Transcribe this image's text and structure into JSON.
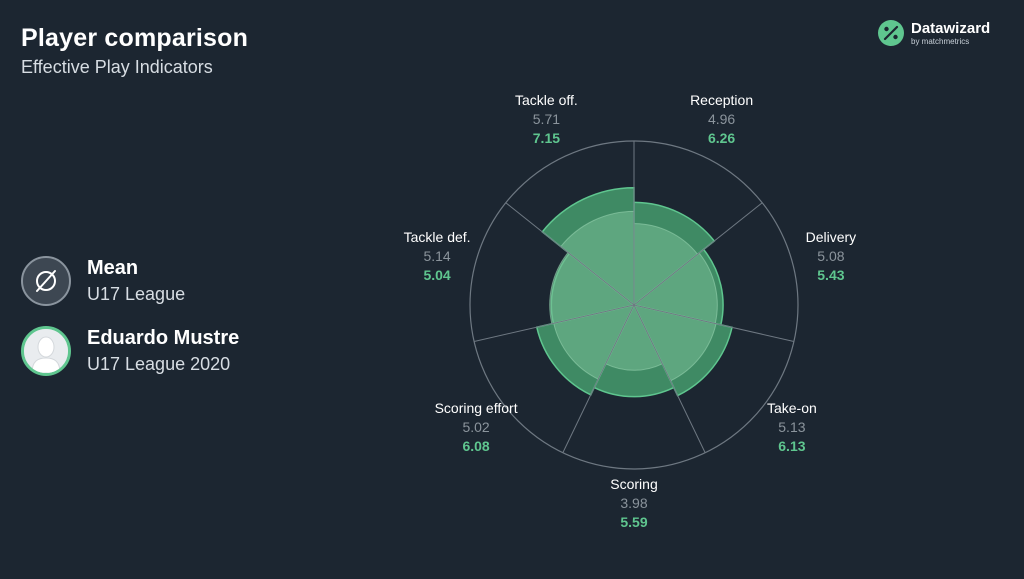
{
  "header": {
    "title": "Player comparison",
    "subtitle": "Effective Play Indicators"
  },
  "brand": {
    "name": "Datawizard",
    "tagline": "by matchmetrics"
  },
  "legend": {
    "mean": {
      "name": "Mean",
      "sub": "U17 League",
      "icon": "empty-set-icon"
    },
    "player": {
      "name": "Eduardo Mustre",
      "sub": "U17 League 2020",
      "icon": "person-silhouette-icon"
    }
  },
  "colors": {
    "background": "#1c2631",
    "player": "#5fc68f",
    "mean": "#8b949c"
  },
  "chart_data": {
    "type": "polar-area",
    "r_max": 10,
    "categories": [
      "Reception",
      "Delivery",
      "Take-on",
      "Scoring",
      "Scoring effort",
      "Tackle def.",
      "Tackle off."
    ],
    "series": [
      {
        "name": "Mean",
        "values": [
          4.96,
          5.08,
          5.13,
          3.98,
          5.02,
          5.14,
          5.71
        ]
      },
      {
        "name": "Eduardo Mustre",
        "values": [
          6.26,
          5.43,
          6.13,
          5.59,
          6.08,
          5.04,
          7.15
        ]
      }
    ]
  }
}
